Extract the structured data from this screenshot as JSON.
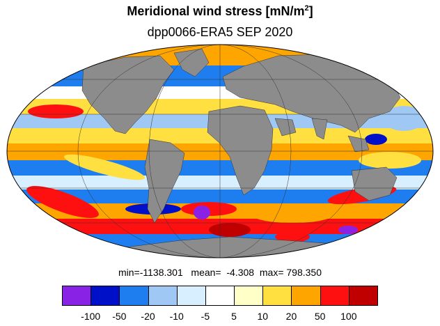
{
  "title": "Meridional wind stress [mN/m",
  "title_superscript": "2",
  "title_end": "]",
  "subtitle": "dpp0066-ERA5 SEP 2020",
  "stats": {
    "min_label": "min=",
    "min": "-1138.301",
    "mean_label": "mean=",
    "mean": "-4.308",
    "max_label": "max=",
    "max": "798.350"
  },
  "projection": "Mollweide",
  "colors": {
    "land": "#8c8c8c",
    "ocean_bins": [
      "#8a22e6",
      "#0010c8",
      "#1e7ef0",
      "#a0c8f5",
      "#d8efff",
      "#ffffff",
      "#ffffc8",
      "#ffe040",
      "#ffa500",
      "#ff1010",
      "#c00000"
    ]
  },
  "colorbar": {
    "labels": [
      "-100",
      "-50",
      "-20",
      "-10",
      "-5",
      "5",
      "10",
      "20",
      "50",
      "100"
    ]
  }
}
